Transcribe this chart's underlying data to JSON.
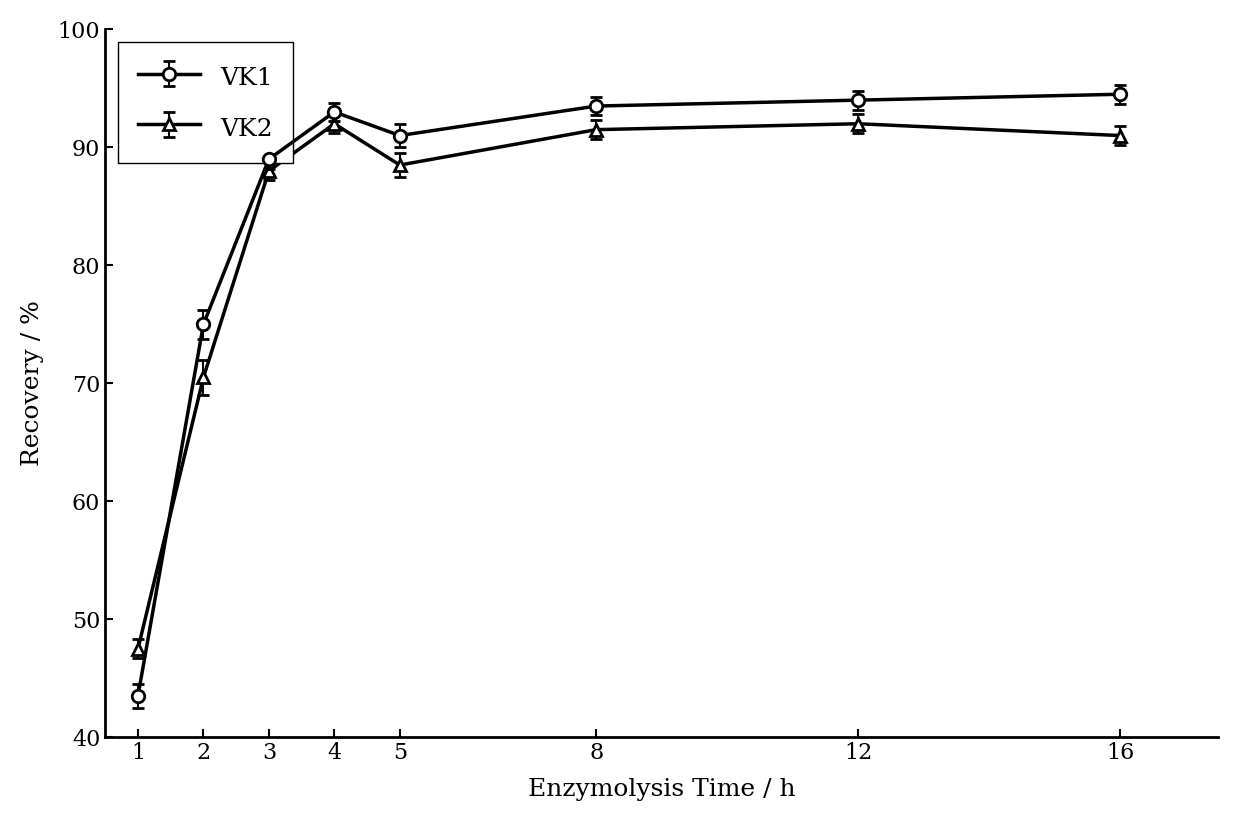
{
  "x": [
    1,
    2,
    3,
    4,
    5,
    8,
    12,
    16
  ],
  "vk1_y": [
    43.5,
    75.0,
    89.0,
    93.0,
    91.0,
    93.5,
    94.0,
    94.5
  ],
  "vk1_yerr": [
    1.0,
    1.2,
    0.8,
    0.8,
    1.0,
    0.8,
    0.8,
    0.8
  ],
  "vk2_y": [
    47.5,
    70.5,
    88.0,
    92.0,
    88.5,
    91.5,
    92.0,
    91.0
  ],
  "vk2_yerr": [
    0.8,
    1.5,
    0.8,
    0.8,
    1.0,
    0.8,
    0.8,
    0.8
  ],
  "xlabel": "Enzymolysis Time / h",
  "ylabel": "Recovery / %",
  "ylim": [
    40,
    100
  ],
  "yticks": [
    40,
    50,
    60,
    70,
    80,
    90,
    100
  ],
  "xtick_values": [
    1,
    2,
    3,
    4,
    5,
    8,
    12,
    16
  ],
  "xtick_labels": [
    "1",
    "2",
    "3",
    "4",
    "5",
    "8",
    "12",
    "16"
  ],
  "xlim": [
    0.5,
    17.5
  ],
  "legend_vk1": "VK1",
  "legend_vk2": "VK2",
  "line_color": "#000000",
  "bg_color": "#ffffff"
}
